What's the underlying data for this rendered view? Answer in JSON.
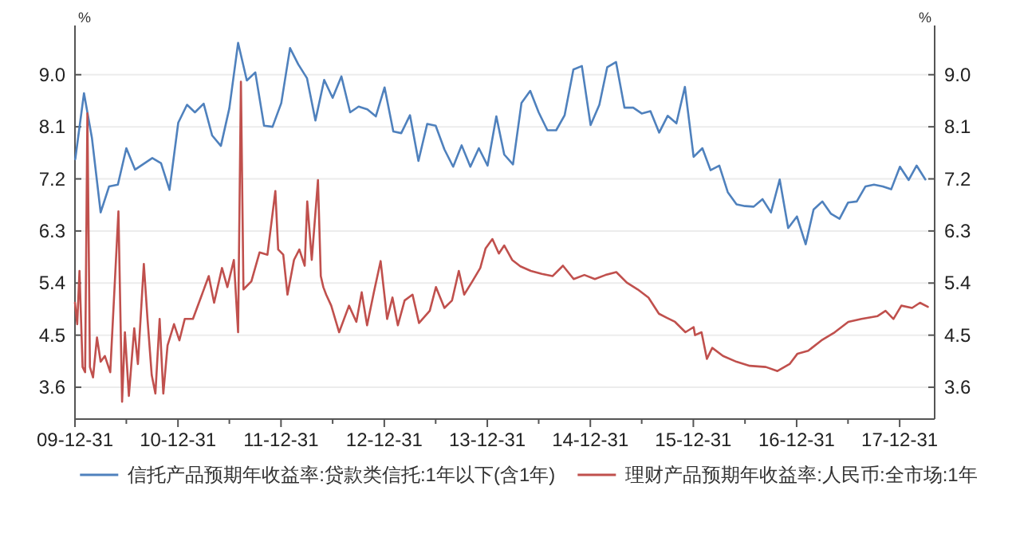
{
  "chart_data": {
    "type": "line",
    "xlim": [
      "2009-12-31",
      "2018-05-04"
    ],
    "xticks": [
      {
        "value": "2009-12-31",
        "label": "09-12-31"
      },
      {
        "value": "2010-07-01",
        "label": null
      },
      {
        "value": "2010-12-31",
        "label": "10-12-31"
      },
      {
        "value": "2011-07-01",
        "label": null
      },
      {
        "value": "2011-12-31",
        "label": "11-12-31"
      },
      {
        "value": "2012-07-01",
        "label": null
      },
      {
        "value": "2012-12-31",
        "label": "12-12-31"
      },
      {
        "value": "2013-07-01",
        "label": null
      },
      {
        "value": "2013-12-31",
        "label": "13-12-31"
      },
      {
        "value": "2014-07-01",
        "label": null
      },
      {
        "value": "2014-12-31",
        "label": "14-12-31"
      },
      {
        "value": "2015-07-01",
        "label": null
      },
      {
        "value": "2015-12-31",
        "label": "15-12-31"
      },
      {
        "value": "2016-07-01",
        "label": null
      },
      {
        "value": "2016-12-31",
        "label": "16-12-31"
      },
      {
        "value": "2017-07-01",
        "label": null
      },
      {
        "value": "2017-12-31",
        "label": "17-12-31"
      }
    ],
    "ylim": [
      3.05,
      9.85
    ],
    "yticks": [
      {
        "value": 3.6,
        "label": "3.6"
      },
      {
        "value": 4.5,
        "label": "4.5"
      },
      {
        "value": 5.4,
        "label": "5.4"
      },
      {
        "value": 6.3,
        "label": "6.3"
      },
      {
        "value": 7.2,
        "label": "7.2"
      },
      {
        "value": 8.1,
        "label": "8.1"
      },
      {
        "value": 9.0,
        "label": "9.0"
      }
    ],
    "y2lim": [
      3.05,
      9.85
    ],
    "y2ticks": [
      {
        "value": 3.6,
        "label": "3.6"
      },
      {
        "value": 4.5,
        "label": "4.5"
      },
      {
        "value": 5.4,
        "label": "5.4"
      },
      {
        "value": 6.3,
        "label": "6.3"
      },
      {
        "value": 7.2,
        "label": "7.2"
      },
      {
        "value": 8.1,
        "label": "8.1"
      },
      {
        "value": 9.0,
        "label": "9.0"
      }
    ],
    "ylabel": "%",
    "y2label": "%",
    "grid": "y",
    "legend": "bottom",
    "line_style": "solid",
    "marker": "none",
    "series": [
      {
        "name": "信托产品预期年收益率:贷款类信托:1年以下(含1年)",
        "color": "#4f81bd",
        "x": [
          "2010-01",
          "2010-02",
          "2010-03",
          "2010-04",
          "2010-05",
          "2010-06",
          "2010-07",
          "2010-08",
          "2010-10",
          "2010-11",
          "2010-12",
          "2011-01",
          "2011-02",
          "2011-03",
          "2011-04",
          "2011-05",
          "2011-06",
          "2011-07",
          "2011-08",
          "2011-09",
          "2011-10",
          "2011-11",
          "2011-12",
          "2012-01",
          "2012-02",
          "2012-03",
          "2012-04",
          "2012-05",
          "2012-06",
          "2012-07",
          "2012-08",
          "2012-09",
          "2012-10",
          "2012-11",
          "2012-12",
          "2013-01",
          "2013-02",
          "2013-03",
          "2013-04",
          "2013-05",
          "2013-06",
          "2013-07",
          "2013-08",
          "2013-09",
          "2013-10",
          "2013-11",
          "2013-12",
          "2014-01",
          "2014-02",
          "2014-03",
          "2014-04",
          "2014-05",
          "2014-06",
          "2014-07",
          "2014-08",
          "2014-09",
          "2014-10",
          "2014-11",
          "2014-12",
          "2015-01",
          "2015-02",
          "2015-03",
          "2015-04",
          "2015-05",
          "2015-06",
          "2015-07",
          "2015-08",
          "2015-09",
          "2015-10",
          "2015-11",
          "2015-12",
          "2016-01",
          "2016-02",
          "2016-03",
          "2016-04",
          "2016-05",
          "2016-06",
          "2016-07",
          "2016-08",
          "2016-09",
          "2016-10",
          "2016-11",
          "2016-12",
          "2017-01",
          "2017-02",
          "2017-03",
          "2017-04",
          "2017-05",
          "2017-06",
          "2017-07",
          "2017-08",
          "2017-09",
          "2017-10",
          "2017-11",
          "2017-12",
          "2018-01",
          "2018-02",
          "2018-03",
          "2018-04"
        ],
        "values": [
          7.54,
          8.68,
          7.91,
          6.62,
          7.07,
          7.1,
          7.73,
          7.36,
          7.56,
          7.47,
          7.01,
          8.17,
          8.48,
          8.35,
          8.5,
          7.95,
          7.77,
          8.42,
          9.55,
          8.9,
          9.04,
          8.12,
          8.1,
          8.51,
          9.46,
          9.18,
          8.94,
          8.21,
          8.91,
          8.6,
          8.97,
          8.35,
          8.45,
          8.4,
          8.28,
          8.78,
          8.02,
          7.99,
          8.3,
          7.51,
          8.15,
          8.12,
          7.71,
          7.41,
          7.78,
          7.41,
          7.73,
          7.43,
          8.28,
          7.62,
          7.45,
          8.51,
          8.72,
          8.35,
          8.04,
          8.04,
          8.3,
          9.09,
          9.15,
          8.13,
          8.48,
          9.13,
          9.22,
          8.43,
          8.43,
          8.33,
          8.37,
          8.0,
          8.29,
          8.16,
          8.79,
          7.58,
          7.73,
          7.35,
          7.43,
          6.97,
          6.76,
          6.73,
          6.72,
          6.85,
          6.62,
          7.19,
          6.35,
          6.55,
          6.07,
          6.67,
          6.81,
          6.6,
          6.51,
          6.79,
          6.81,
          7.07,
          7.1,
          7.07,
          7.02,
          7.41,
          7.18,
          7.43,
          7.19
        ]
      },
      {
        "name": "理财产品预期年收益率:人民币:全市场:1年",
        "color": "#c0504d",
        "x": [
          "2009-12-31",
          "2010-01-08",
          "2010-01-16",
          "2010-01-27",
          "2010-02-05",
          "2010-02-13",
          "2010-02-22",
          "2010-03-05",
          "2010-03-19",
          "2010-04-01",
          "2010-04-16",
          "2010-05-05",
          "2010-06-03",
          "2010-06-16",
          "2010-06-26",
          "2010-07-10",
          "2010-07-29",
          "2010-08-11",
          "2010-09-01",
          "2010-09-14",
          "2010-09-29",
          "2010-10-12",
          "2010-10-27",
          "2010-11-09",
          "2010-11-24",
          "2010-12-17",
          "2011-01-05",
          "2011-01-24",
          "2011-02-22",
          "2011-03-22",
          "2011-04-19",
          "2011-05-08",
          "2011-06-05",
          "2011-06-24",
          "2011-07-17",
          "2011-08-01",
          "2011-08-11",
          "2011-08-20",
          "2011-09-17",
          "2011-10-16",
          "2011-11-13",
          "2011-12-11",
          "2011-12-21",
          "2012-01-08",
          "2012-01-23",
          "2012-02-15",
          "2012-03-05",
          "2012-03-24",
          "2012-04-02",
          "2012-04-18",
          "2012-05-10",
          "2012-05-20",
          "2012-05-29",
          "2012-06-08",
          "2012-06-26",
          "2012-07-24",
          "2012-08-28",
          "2012-09-23",
          "2012-10-12",
          "2012-10-31",
          "2012-11-24",
          "2012-12-18",
          "2013-01-10",
          "2013-01-29",
          "2013-02-17",
          "2013-03-13",
          "2013-04-10",
          "2013-05-03",
          "2013-06-10",
          "2013-07-02",
          "2013-08-01",
          "2013-08-28",
          "2013-09-21",
          "2013-10-10",
          "2013-11-08",
          "2013-12-06",
          "2013-12-25",
          "2014-01-18",
          "2014-02-10",
          "2014-03-01",
          "2014-03-29",
          "2014-04-27",
          "2014-06-03",
          "2014-07-12",
          "2014-08-19",
          "2014-09-25",
          "2014-11-02",
          "2014-12-10",
          "2015-01-16",
          "2015-02-23",
          "2015-04-02",
          "2015-05-09",
          "2015-06-17",
          "2015-07-25",
          "2015-08-31",
          "2015-09-28",
          "2015-10-27",
          "2015-12-03",
          "2016-01-01",
          "2016-01-06",
          "2016-01-29",
          "2016-02-17",
          "2016-03-07",
          "2016-04-14",
          "2016-06-01",
          "2016-07-18",
          "2016-09-13",
          "2016-10-24",
          "2016-12-06",
          "2017-01-03",
          "2017-02-10",
          "2017-03-29",
          "2017-05-15",
          "2017-07-02",
          "2017-08-18",
          "2017-10-14",
          "2017-11-11",
          "2017-12-09",
          "2018-01-06",
          "2018-02-13",
          "2018-03-13",
          "2018-04-10"
        ],
        "values": [
          5.06,
          4.69,
          5.61,
          3.95,
          3.86,
          8.33,
          3.95,
          3.77,
          4.46,
          4.04,
          4.14,
          3.86,
          6.64,
          3.35,
          4.55,
          3.45,
          4.62,
          4.0,
          5.73,
          4.78,
          3.81,
          3.49,
          4.78,
          3.49,
          4.32,
          4.69,
          4.41,
          4.78,
          4.78,
          5.15,
          5.52,
          5.06,
          5.66,
          5.33,
          5.8,
          4.55,
          8.88,
          5.29,
          5.43,
          5.93,
          5.89,
          6.99,
          5.98,
          5.89,
          5.2,
          5.8,
          5.98,
          5.7,
          6.81,
          5.8,
          7.18,
          5.52,
          5.33,
          5.2,
          5.01,
          4.55,
          5.01,
          4.73,
          5.24,
          4.67,
          5.24,
          5.78,
          4.78,
          5.15,
          4.67,
          5.1,
          5.2,
          4.71,
          4.92,
          5.33,
          4.97,
          5.1,
          5.61,
          5.2,
          5.43,
          5.66,
          6.0,
          6.16,
          5.91,
          6.05,
          5.8,
          5.69,
          5.61,
          5.56,
          5.52,
          5.7,
          5.47,
          5.54,
          5.47,
          5.54,
          5.59,
          5.41,
          5.29,
          5.15,
          4.87,
          4.8,
          4.73,
          4.55,
          4.64,
          4.5,
          4.55,
          4.09,
          4.28,
          4.14,
          4.04,
          3.97,
          3.95,
          3.88,
          4.0,
          4.18,
          4.23,
          4.41,
          4.55,
          4.73,
          4.78,
          4.83,
          4.92,
          4.78,
          5.01,
          4.97,
          5.06,
          4.99
        ]
      }
    ]
  }
}
